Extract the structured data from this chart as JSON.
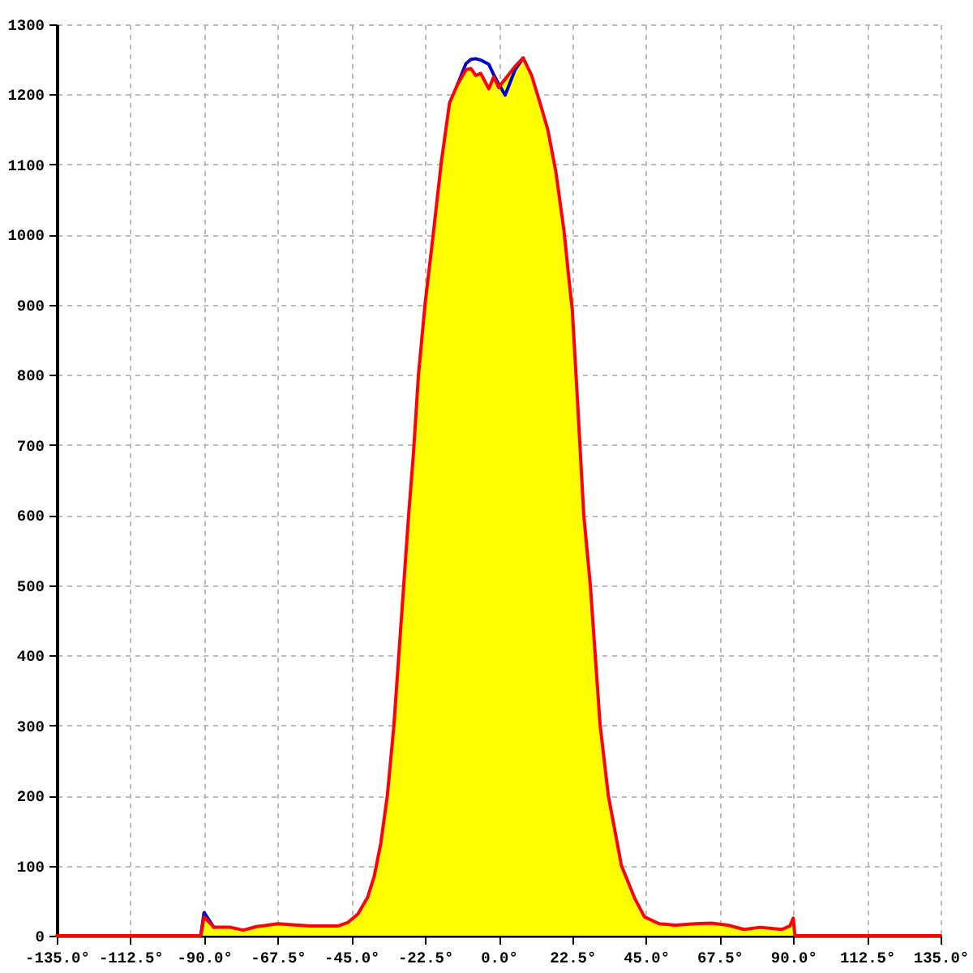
{
  "chart_data": {
    "type": "line",
    "xlim": [
      -135,
      135
    ],
    "xticks": [
      {
        "value": -135,
        "label": "-135.0°"
      },
      {
        "value": -112.5,
        "label": "-112.5°"
      },
      {
        "value": -90,
        "label": "-90.0°"
      },
      {
        "value": -67.5,
        "label": "-67.5°"
      },
      {
        "value": -45,
        "label": "-45.0°"
      },
      {
        "value": -22.5,
        "label": "-22.5°"
      },
      {
        "value": 0,
        "label": "0.0°"
      },
      {
        "value": 22.5,
        "label": "22.5°"
      },
      {
        "value": 45,
        "label": "45.0°"
      },
      {
        "value": 67.5,
        "label": "67.5°"
      },
      {
        "value": 90,
        "label": "90.0°"
      },
      {
        "value": 112.5,
        "label": "112.5°"
      },
      {
        "value": 135,
        "label": "135.0°"
      }
    ],
    "ylim": [
      0,
      1300
    ],
    "yticks": [
      0,
      100,
      200,
      300,
      400,
      500,
      600,
      700,
      800,
      900,
      1000,
      1100,
      1200,
      1300
    ],
    "grid": true,
    "series": [
      {
        "type": "area",
        "color": "#ffff00",
        "x": [
          -91,
          -90,
          -87,
          -82,
          -78,
          -74,
          -70.5,
          -67.5,
          -64,
          -57.5,
          -49,
          -46,
          -43,
          -40,
          -38,
          -36,
          -34,
          -32,
          -30.5,
          -29,
          -27.5,
          -26,
          -24.5,
          -22.5,
          -20,
          -17.5,
          -15,
          -12.5,
          -10,
          -8.5,
          -7,
          -5.5,
          -3,
          -1.5,
          0,
          2,
          5,
          7.5,
          10,
          12.5,
          15,
          17.5,
          20,
          21.5,
          22.5,
          24,
          26,
          28,
          29.5,
          31,
          33.5,
          37.5,
          41.5,
          44.5,
          49,
          54,
          60,
          65,
          70,
          75,
          80,
          86.5,
          89,
          90,
          90.5
        ],
        "values": [
          0,
          27,
          12,
          12,
          8,
          13,
          15,
          17,
          16,
          14,
          14,
          19,
          31,
          55,
          85,
          132,
          200,
          300,
          400,
          500,
          600,
          690,
          800,
          900,
          1000,
          1104,
          1188,
          1215,
          1235,
          1237,
          1227,
          1230,
          1208,
          1225,
          1210,
          1222,
          1240,
          1252,
          1228,
          1190,
          1150,
          1089,
          1004,
          935,
          892,
          770,
          600,
          500,
          400,
          300,
          200,
          100,
          54,
          27,
          17,
          15,
          17,
          18,
          15,
          9,
          12,
          9,
          14,
          25,
          0
        ]
      },
      {
        "color": "#0000cc",
        "x": [
          -91,
          -90,
          -87,
          -82,
          -12.5,
          -10,
          -8.5,
          -7,
          -5.5,
          -3,
          -1.5,
          0,
          2,
          5,
          7.5
        ],
        "values": [
          0,
          33,
          12,
          null,
          1215,
          1244,
          1250,
          1251,
          1249,
          1243,
          1228,
          1215,
          1199,
          1235,
          1252
        ]
      },
      {
        "color": "#ff0000",
        "x": [
          -135,
          -91,
          -90,
          -87,
          -82,
          -78,
          -74,
          -70.5,
          -67.5,
          -64,
          -57.5,
          -49,
          -46,
          -43,
          -40,
          -38,
          -36,
          -34,
          -32,
          -30.5,
          -29,
          -27.5,
          -26,
          -24.5,
          -22.5,
          -20,
          -17.5,
          -15,
          -12.5,
          -10,
          -8.5,
          -7,
          -5.5,
          -3,
          -1.5,
          0,
          2,
          5,
          7.5,
          10,
          12.5,
          15,
          17.5,
          20,
          21.5,
          22.5,
          24,
          26,
          28,
          29.5,
          31,
          33.5,
          37.5,
          41.5,
          44.5,
          49,
          54,
          60,
          65,
          70,
          75,
          80,
          86.5,
          89,
          90,
          90.5,
          135
        ],
        "values": [
          0,
          0,
          27,
          12,
          12,
          8,
          13,
          15,
          17,
          16,
          14,
          14,
          19,
          31,
          55,
          85,
          132,
          200,
          300,
          400,
          500,
          600,
          690,
          800,
          900,
          1000,
          1104,
          1188,
          1215,
          1235,
          1237,
          1227,
          1230,
          1208,
          1225,
          1210,
          1222,
          1240,
          1252,
          1228,
          1190,
          1150,
          1089,
          1004,
          935,
          892,
          770,
          600,
          500,
          400,
          300,
          200,
          100,
          54,
          27,
          17,
          15,
          17,
          18,
          15,
          9,
          12,
          9,
          14,
          25,
          0,
          0
        ]
      }
    ]
  }
}
